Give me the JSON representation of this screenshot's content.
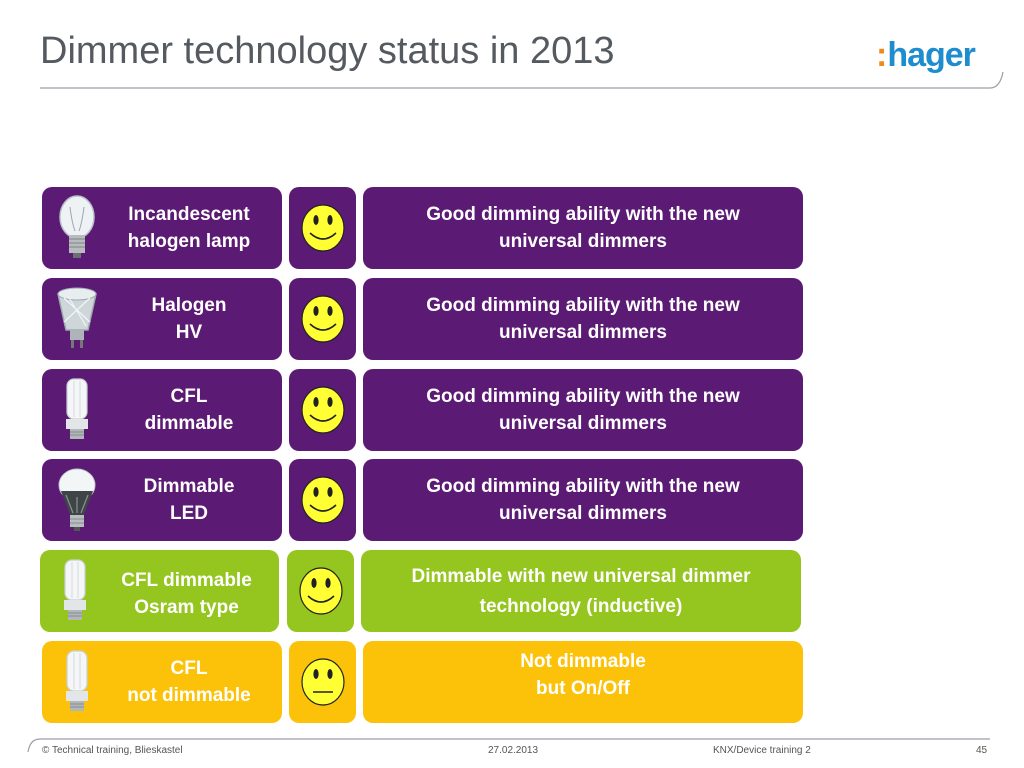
{
  "header": {
    "title": "Dimmer technology status in 2013",
    "logo": "hager",
    "logo_colon": ":"
  },
  "rows": [
    {
      "lamp_line1": "Incandescent",
      "lamp_line2": "halogen lamp",
      "face": "smiley-icon",
      "desc_line1": "Good dimming ability with the new",
      "desc_line2": "universal dimmers",
      "color": "#5b1a73"
    },
    {
      "lamp_line1": "Halogen",
      "lamp_line2": "HV",
      "face": "smiley-icon",
      "desc_line1": "Good dimming ability with the new",
      "desc_line2": "universal dimmers",
      "color": "#5b1a73"
    },
    {
      "lamp_line1": "CFL",
      "lamp_line2": "dimmable",
      "face": "smiley-icon",
      "desc_line1": "Good dimming ability with the new",
      "desc_line2": "universal dimmers",
      "color": "#5b1a73"
    },
    {
      "lamp_line1": "Dimmable",
      "lamp_line2": "LED",
      "face": "smiley-icon",
      "desc_line1": "Good dimming ability with the new",
      "desc_line2": "universal dimmers",
      "color": "#5b1a73"
    },
    {
      "lamp_line1": "CFL dimmable",
      "lamp_line2": "Osram type",
      "face": "smiley-icon",
      "desc_line1": "Dimmable with new universal dimmer",
      "desc_line2": "technology (inductive)",
      "color": "#95c51f"
    },
    {
      "lamp_line1": "CFL",
      "lamp_line2": "not dimmable",
      "face": "neutral-face-icon",
      "desc_line1": "Not dimmable",
      "desc_line2": "but On/Off",
      "color": "#fcc20a"
    }
  ],
  "footer": {
    "copyright": "© Technical training, Blieskastel",
    "date": "27.02.2013",
    "course": "KNX/Device training 2",
    "page": "45"
  }
}
